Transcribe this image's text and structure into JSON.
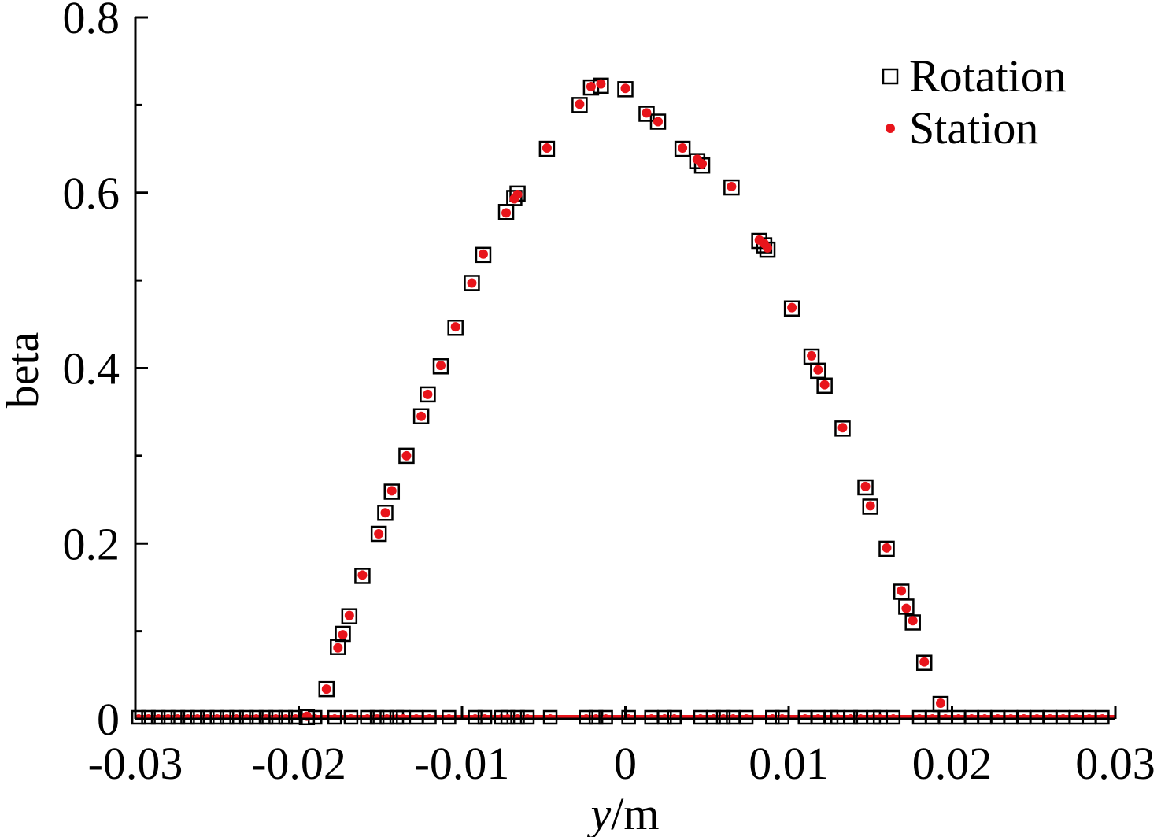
{
  "chart_data": {
    "type": "scatter",
    "xlabel_italic": "y",
    "xlabel_rest": "/m",
    "ylabel": "beta",
    "xlim": [
      -0.03,
      0.03
    ],
    "ylim": [
      0,
      0.8
    ],
    "x_ticks": [
      -0.03,
      -0.02,
      -0.01,
      0,
      0.01,
      0.02,
      0.03
    ],
    "x_tick_labels": [
      "-0.03",
      "-0.02",
      "-0.01",
      "0",
      "0.01",
      "0.02",
      "0.03"
    ],
    "y_ticks": [
      0,
      0.2,
      0.4,
      0.6,
      0.8
    ],
    "y_tick_labels": [
      "0",
      "0.2",
      "0.4",
      "0.6",
      "0.8"
    ],
    "y_minor_ticks": [
      0.1,
      0.3,
      0.5,
      0.7
    ],
    "legend": {
      "placement": "top-right",
      "entries": [
        "Rotation",
        "Station"
      ]
    },
    "colors": {
      "rotation": "#000000",
      "station": "#e8141b"
    },
    "series": [
      {
        "name": "Rotation",
        "marker": "hollow-square",
        "points": [
          [
            -0.0195,
            0.002
          ],
          [
            -0.0183,
            0.034
          ],
          [
            -0.0176,
            0.082
          ],
          [
            -0.0173,
            0.097
          ],
          [
            -0.0169,
            0.117
          ],
          [
            -0.0161,
            0.163
          ],
          [
            -0.0151,
            0.211
          ],
          [
            -0.0147,
            0.235
          ],
          [
            -0.0143,
            0.259
          ],
          [
            -0.0134,
            0.3
          ],
          [
            -0.0125,
            0.345
          ],
          [
            -0.0121,
            0.37
          ],
          [
            -0.0113,
            0.402
          ],
          [
            -0.0104,
            0.446
          ],
          [
            -0.0094,
            0.497
          ],
          [
            -0.0087,
            0.529
          ],
          [
            -0.0073,
            0.578
          ],
          [
            -0.0068,
            0.594
          ],
          [
            -0.0066,
            0.599
          ],
          [
            -0.0048,
            0.65
          ],
          [
            -0.0028,
            0.7
          ],
          [
            -0.0021,
            0.72
          ],
          [
            -0.0015,
            0.722
          ],
          [
            0.0,
            0.718
          ],
          [
            0.0013,
            0.69
          ],
          [
            0.002,
            0.681
          ],
          [
            0.0035,
            0.65
          ],
          [
            0.0044,
            0.636
          ],
          [
            0.0047,
            0.631
          ],
          [
            0.0065,
            0.606
          ],
          [
            0.0082,
            0.545
          ],
          [
            0.0085,
            0.54
          ],
          [
            0.0087,
            0.535
          ],
          [
            0.0102,
            0.468
          ],
          [
            0.0114,
            0.413
          ],
          [
            0.0118,
            0.397
          ],
          [
            0.0122,
            0.38
          ],
          [
            0.0133,
            0.331
          ],
          [
            0.0147,
            0.264
          ],
          [
            0.015,
            0.242
          ],
          [
            0.016,
            0.194
          ],
          [
            0.0169,
            0.145
          ],
          [
            0.0172,
            0.128
          ],
          [
            0.0176,
            0.11
          ],
          [
            0.0183,
            0.064
          ],
          [
            0.0193,
            0.017
          ]
        ]
      },
      {
        "name": "Station",
        "marker": "filled-dot",
        "points": [
          [
            -0.0195,
            0.003
          ],
          [
            -0.0183,
            0.034
          ],
          [
            -0.0176,
            0.081
          ],
          [
            -0.0173,
            0.096
          ],
          [
            -0.0169,
            0.118
          ],
          [
            -0.0161,
            0.164
          ],
          [
            -0.0151,
            0.211
          ],
          [
            -0.0147,
            0.235
          ],
          [
            -0.0143,
            0.26
          ],
          [
            -0.0134,
            0.3
          ],
          [
            -0.0125,
            0.345
          ],
          [
            -0.0121,
            0.37
          ],
          [
            -0.0113,
            0.403
          ],
          [
            -0.0104,
            0.447
          ],
          [
            -0.0094,
            0.497
          ],
          [
            -0.0087,
            0.53
          ],
          [
            -0.0073,
            0.577
          ],
          [
            -0.0068,
            0.593
          ],
          [
            -0.0066,
            0.598
          ],
          [
            -0.0048,
            0.651
          ],
          [
            -0.0028,
            0.701
          ],
          [
            -0.0021,
            0.721
          ],
          [
            -0.0015,
            0.724
          ],
          [
            0.0,
            0.719
          ],
          [
            0.0013,
            0.691
          ],
          [
            0.002,
            0.681
          ],
          [
            0.0035,
            0.651
          ],
          [
            0.0044,
            0.638
          ],
          [
            0.0047,
            0.633
          ],
          [
            0.0065,
            0.607
          ],
          [
            0.0082,
            0.546
          ],
          [
            0.0085,
            0.542
          ],
          [
            0.0087,
            0.537
          ],
          [
            0.0102,
            0.469
          ],
          [
            0.0114,
            0.414
          ],
          [
            0.0118,
            0.398
          ],
          [
            0.0122,
            0.381
          ],
          [
            0.0133,
            0.332
          ],
          [
            0.0147,
            0.265
          ],
          [
            0.015,
            0.243
          ],
          [
            0.016,
            0.195
          ],
          [
            0.0169,
            0.146
          ],
          [
            0.0172,
            0.126
          ],
          [
            0.0176,
            0.112
          ],
          [
            0.0183,
            0.065
          ],
          [
            0.0193,
            0.018
          ]
        ]
      }
    ],
    "baseline_points_x": [
      -0.0298,
      -0.0292,
      -0.0286,
      -0.028,
      -0.0274,
      -0.0268,
      -0.0262,
      -0.0256,
      -0.025,
      -0.0244,
      -0.0238,
      -0.0232,
      -0.0226,
      -0.022,
      -0.0214,
      -0.0208,
      -0.0202,
      -0.019,
      -0.0178,
      -0.0168,
      -0.0158,
      -0.0152,
      -0.0146,
      -0.014,
      -0.0136,
      -0.0128,
      -0.012,
      -0.0108,
      -0.0092,
      -0.0086,
      -0.0076,
      -0.0072,
      -0.0066,
      -0.006,
      -0.0046,
      -0.0024,
      -0.0018,
      -0.0012,
      0.0002,
      0.0016,
      0.0024,
      0.003,
      0.0046,
      0.0054,
      0.006,
      0.0066,
      0.0074,
      0.009,
      0.0096,
      0.011,
      0.0118,
      0.0126,
      0.013,
      0.0138,
      0.0144,
      0.0152,
      0.0156,
      0.0164,
      0.018,
      0.0188,
      0.0196,
      0.0204,
      0.0212,
      0.022,
      0.0228,
      0.0236,
      0.0244,
      0.0252,
      0.026,
      0.0268,
      0.0276,
      0.0284,
      0.0292
    ]
  }
}
